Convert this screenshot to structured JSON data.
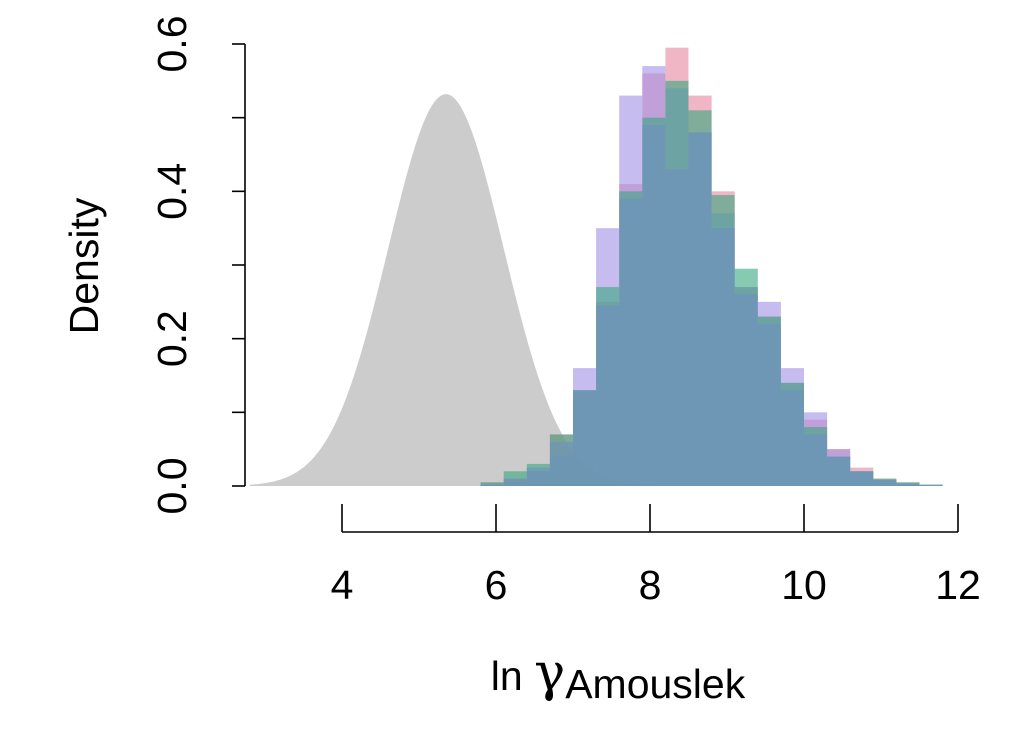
{
  "chart_data": {
    "type": "histogram",
    "xlabel": {
      "prefix": "ln ",
      "symbol": "γ",
      "subscript": "Amouslek"
    },
    "ylabel": "Density",
    "xlim": [
      2.7,
      12.0
    ],
    "ylim": [
      0.0,
      0.6
    ],
    "xticks": [
      4,
      6,
      8,
      10,
      12
    ],
    "yticks": [
      0.0,
      0.1,
      0.2,
      0.3,
      0.4,
      0.5,
      0.6
    ],
    "ytick_labels": [
      "0.0",
      "0.2",
      "0.4",
      "0.6"
    ],
    "grid": false,
    "legend": "none",
    "prior": {
      "kind": "normal-density",
      "mean": 5.35,
      "sd": 0.75,
      "x_range": [
        2.8,
        8.0
      ],
      "color": "#cccccc"
    },
    "bin_width": 0.3,
    "bin_start": 5.5,
    "series": [
      {
        "color": "#e8859e",
        "values": [
          0.0,
          0.005,
          0.01,
          0.02,
          0.07,
          0.13,
          0.25,
          0.41,
          0.56,
          0.595,
          0.53,
          0.4,
          0.27,
          0.23,
          0.14,
          0.09,
          0.05,
          0.025,
          0.01,
          0.005,
          0.002,
          0.0
        ]
      },
      {
        "color": "#a18fe6",
        "values": [
          0.0,
          0.002,
          0.005,
          0.02,
          0.04,
          0.16,
          0.35,
          0.53,
          0.57,
          0.54,
          0.48,
          0.37,
          0.27,
          0.25,
          0.16,
          0.1,
          0.05,
          0.02,
          0.008,
          0.003,
          0.001,
          0.0
        ]
      },
      {
        "color": "#35a67d",
        "values": [
          0.0,
          0.005,
          0.02,
          0.03,
          0.07,
          0.13,
          0.27,
          0.4,
          0.5,
          0.55,
          0.51,
          0.395,
          0.295,
          0.23,
          0.14,
          0.08,
          0.04,
          0.02,
          0.01,
          0.005,
          0.002,
          0.0
        ]
      },
      {
        "color": "#6e8fbf",
        "values": [
          0.0,
          0.002,
          0.01,
          0.025,
          0.06,
          0.13,
          0.245,
          0.39,
          0.49,
          0.43,
          0.48,
          0.35,
          0.26,
          0.22,
          0.13,
          0.07,
          0.04,
          0.02,
          0.008,
          0.003,
          0.001,
          0.0
        ]
      }
    ]
  }
}
